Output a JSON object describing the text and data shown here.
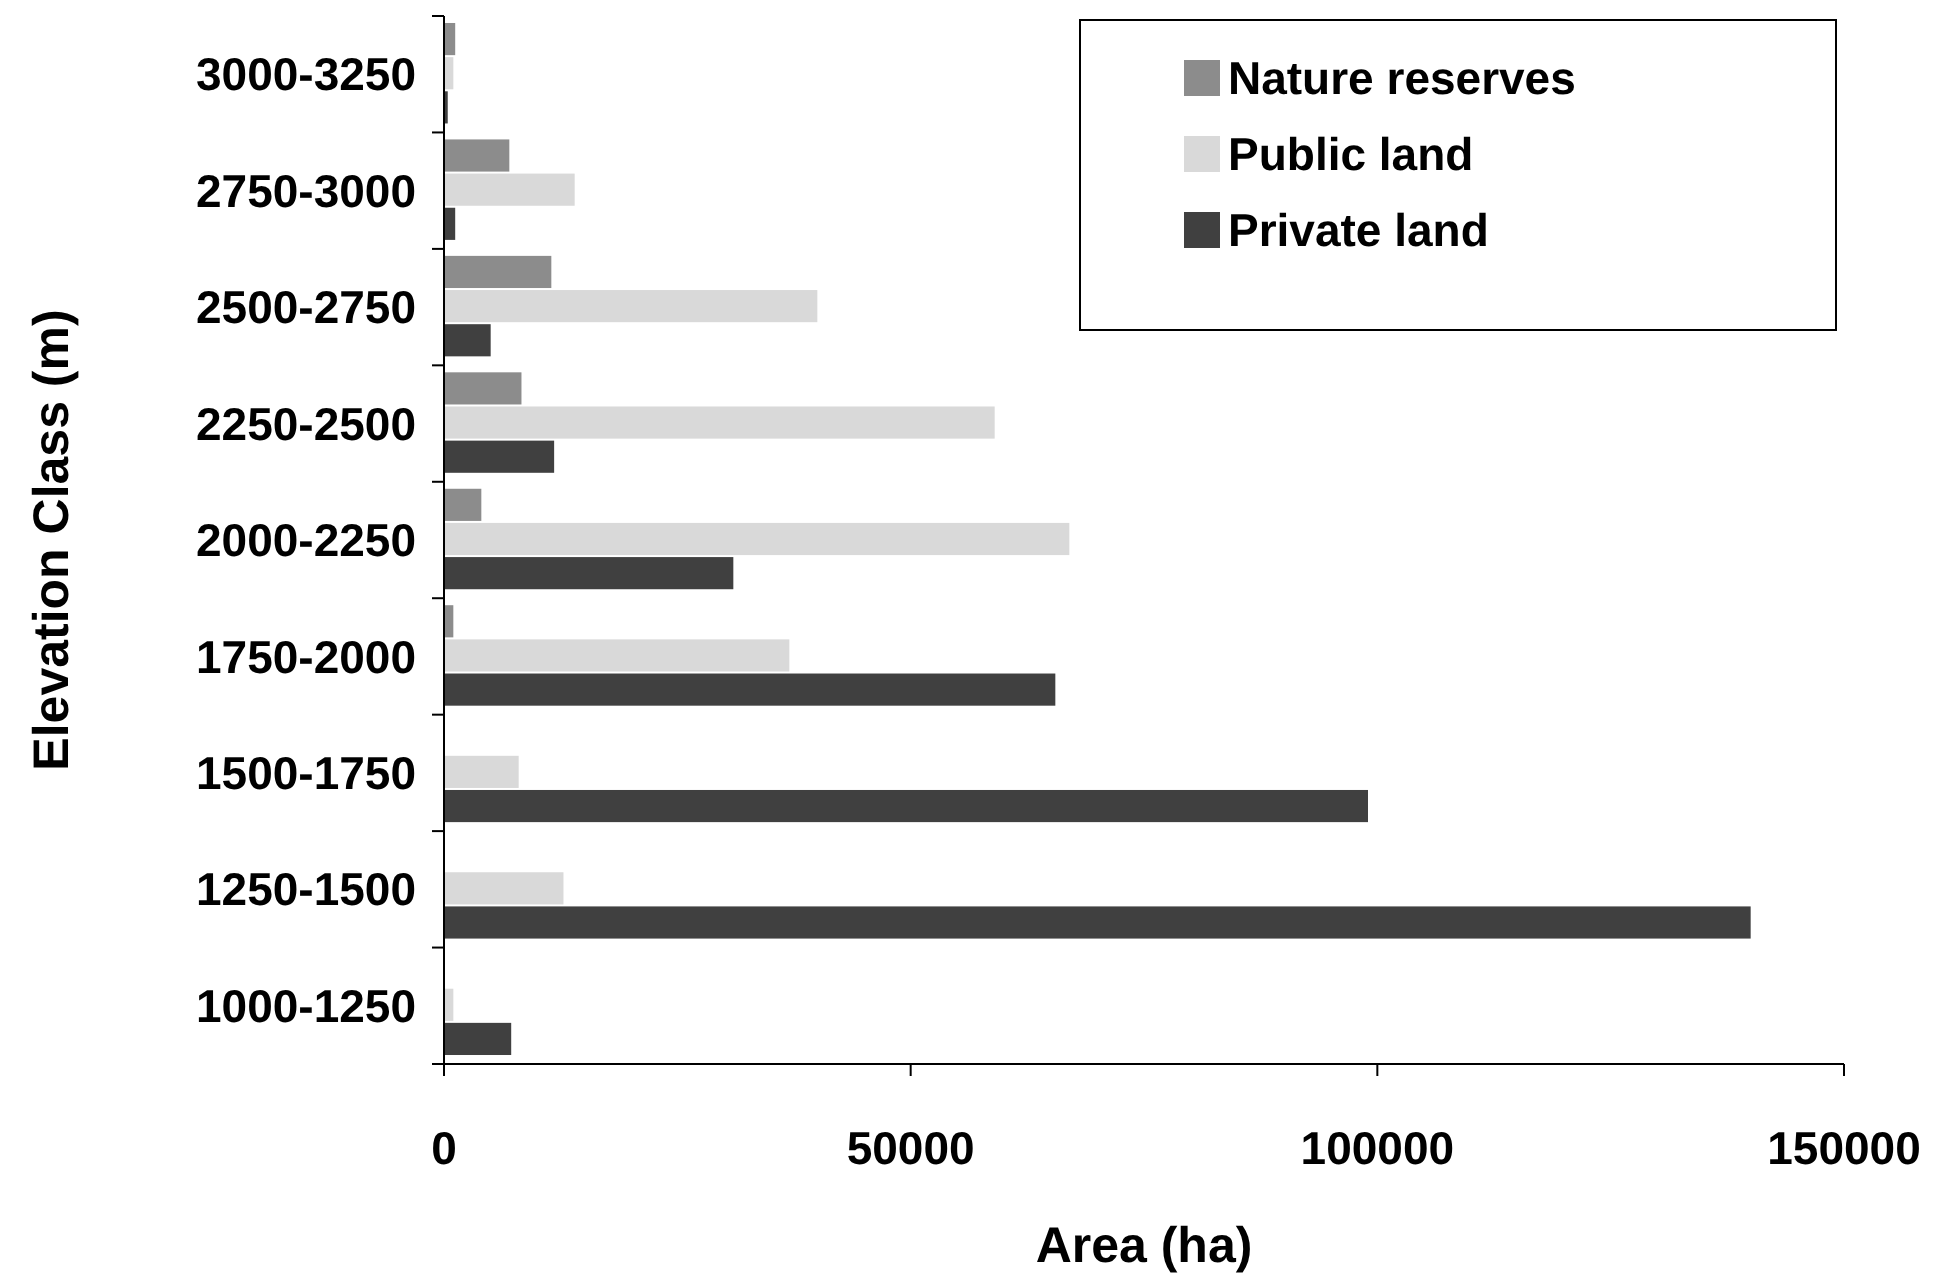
{
  "chart_data": {
    "type": "bar",
    "orientation": "horizontal",
    "xlabel": "Area (ha)",
    "ylabel": "Elevation Class (m)",
    "categories": [
      "3000-3250",
      "2750-3000",
      "2500-2750",
      "2250-2500",
      "2000-2250",
      "1750-2000",
      "1500-1750",
      "1250-1500",
      "1000-1250"
    ],
    "series": [
      {
        "name": "Nature reserves",
        "color": "#8c8c8c",
        "values": [
          1200,
          7000,
          11500,
          8300,
          4000,
          1000,
          0,
          0,
          0
        ]
      },
      {
        "name": "Public land",
        "color": "#d9d9d9",
        "values": [
          1000,
          14000,
          40000,
          59000,
          67000,
          37000,
          8000,
          12800,
          1000
        ]
      },
      {
        "name": "Private land",
        "color": "#404040",
        "values": [
          400,
          1200,
          5000,
          11800,
          31000,
          65500,
          99000,
          140000,
          7200
        ]
      }
    ],
    "xlim": [
      0,
      150000
    ],
    "xticks": [
      0,
      50000,
      100000,
      150000
    ],
    "legend": "top right"
  }
}
